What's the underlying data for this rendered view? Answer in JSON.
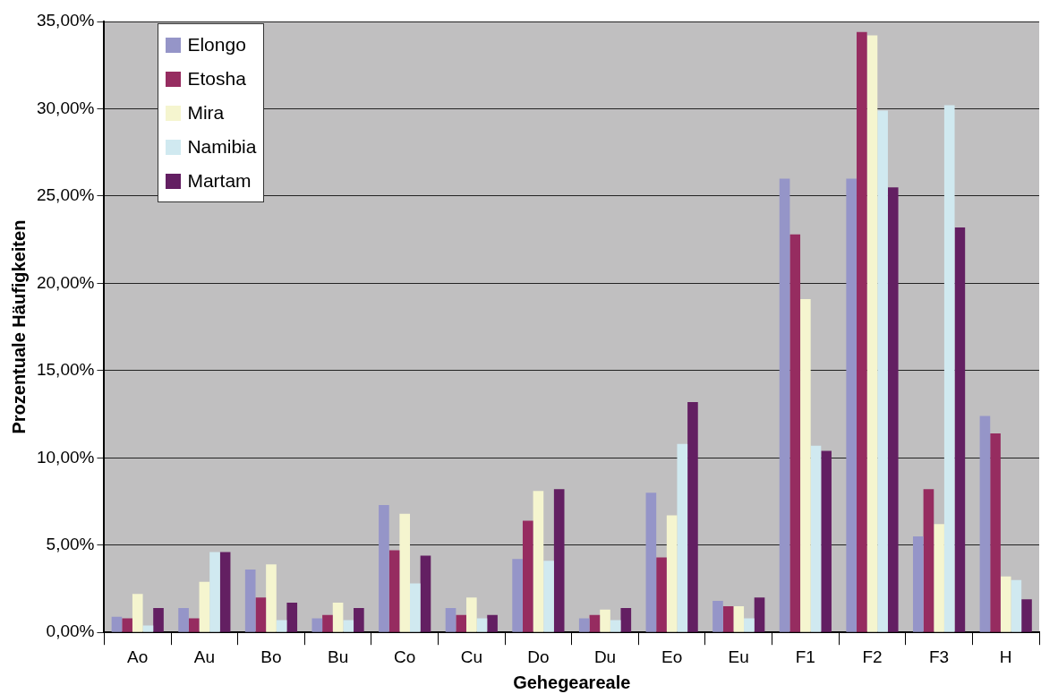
{
  "chart_data": {
    "type": "bar",
    "xlabel": "Gehegeareale",
    "ylabel": "Prozentuale Häufigkeiten",
    "categories": [
      "Ao",
      "Au",
      "Bo",
      "Bu",
      "Co",
      "Cu",
      "Do",
      "Du",
      "Eo",
      "Eu",
      "F1",
      "F2",
      "F3",
      "H"
    ],
    "series": [
      {
        "name": "Elongo",
        "color": "#9595c8",
        "values": [
          0.9,
          1.4,
          3.6,
          0.8,
          7.3,
          1.4,
          4.2,
          0.8,
          8.0,
          1.8,
          26.0,
          26.0,
          5.5,
          12.4
        ]
      },
      {
        "name": "Etosha",
        "color": "#962c60",
        "values": [
          0.8,
          0.8,
          2.0,
          1.0,
          4.7,
          1.0,
          6.4,
          1.0,
          4.3,
          1.5,
          22.8,
          34.4,
          8.2,
          11.4
        ]
      },
      {
        "name": "Mira",
        "color": "#f5f5cf",
        "values": [
          2.2,
          2.9,
          3.9,
          1.7,
          6.8,
          2.0,
          8.1,
          1.3,
          6.7,
          1.5,
          19.1,
          34.2,
          6.2,
          3.2
        ]
      },
      {
        "name": "Namibia",
        "color": "#d0e9f0",
        "values": [
          0.4,
          4.6,
          0.7,
          0.7,
          2.8,
          0.8,
          4.1,
          0.7,
          10.8,
          0.8,
          10.7,
          29.9,
          30.2,
          3.0
        ]
      },
      {
        "name": "Martam",
        "color": "#631f62",
        "values": [
          1.4,
          4.6,
          1.7,
          1.4,
          4.4,
          1.0,
          8.2,
          1.4,
          13.2,
          2.0,
          10.4,
          25.5,
          23.2,
          1.9
        ]
      }
    ],
    "ylim": [
      0,
      35
    ],
    "yticks": [
      {
        "value": 0,
        "label": "0,00%"
      },
      {
        "value": 5,
        "label": "5,00%"
      },
      {
        "value": 10,
        "label": "10,00%"
      },
      {
        "value": 15,
        "label": "15,00%"
      },
      {
        "value": 20,
        "label": "20,00%"
      },
      {
        "value": 25,
        "label": "25,00%"
      },
      {
        "value": 30,
        "label": "30,00%"
      },
      {
        "value": 35,
        "label": "35,00%"
      }
    ],
    "grid": "y",
    "legend": "top left"
  }
}
